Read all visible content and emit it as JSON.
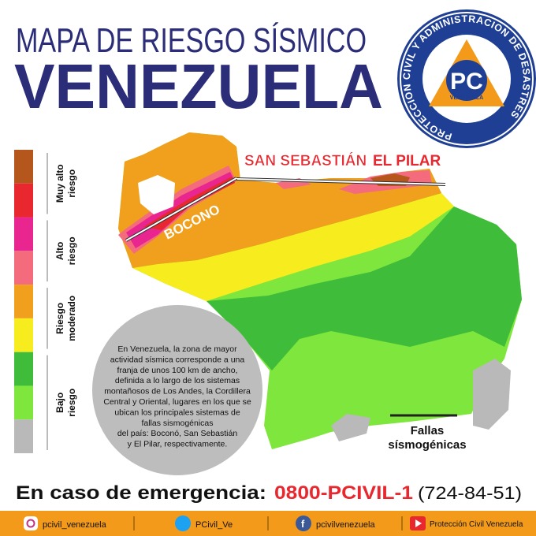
{
  "header": {
    "title_line1": "MAPA DE RIESGO SÍSMICO",
    "title_line2": "VENEZUELA"
  },
  "logo": {
    "ring_text": "PROTECCION CIVIL Y ADMINISTRACION DE DESASTRES",
    "initials": "PC",
    "country": "VENEZUELA"
  },
  "legend": {
    "colors": [
      "#b5561c",
      "#e8282e",
      "#e9268f",
      "#f46b7e",
      "#f0a01c",
      "#f7ec1e",
      "#3fbd3a",
      "#7ee63c",
      "#b9b9b9"
    ],
    "groups": [
      {
        "lines": [
          "Muy alto",
          "riesgo"
        ]
      },
      {
        "lines": [
          "Alto",
          "riesgo"
        ]
      },
      {
        "lines": [
          "Riesgo",
          "moderado"
        ]
      },
      {
        "lines": [
          "Bajo",
          "riesgo"
        ]
      }
    ]
  },
  "map": {
    "faults": [
      "SAN SEBASTIÁN",
      "EL PILAR",
      "BOCONO"
    ],
    "faults_legend": [
      "Fallas",
      "sísmogénicas"
    ],
    "note_lines": [
      "En Venezuela, la zona de mayor",
      "actividad sísmica corresponde a una",
      "franja de unos 100 km de ancho,",
      "definida a lo largo de los sistemas",
      "montañosos de Los Andes, la Cordillera",
      "Central y Oriental, lugares en los que se",
      "ubican los principales sistemas de",
      "fallas sismogénicas",
      "del país: Boconó, San Sebastián",
      "y El Pilar, respectivamente."
    ]
  },
  "emergency": {
    "label": "En caso de emergencia:",
    "number": "0800-PCIVIL-1",
    "alt_number": "(724-84-51)"
  },
  "footer": {
    "instagram": "pcivil_venezuela",
    "twitter": "PCivil_Ve",
    "facebook": "pcivilvenezuela",
    "youtube": "Protección Civil Venezuela"
  }
}
